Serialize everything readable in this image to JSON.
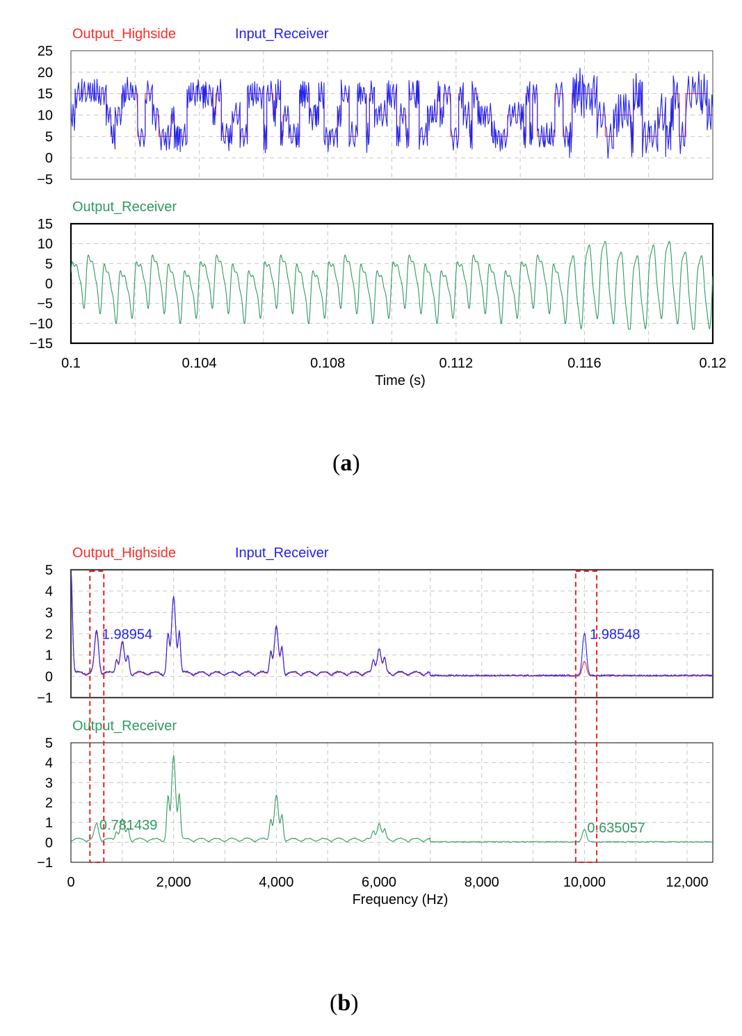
{
  "panels": [
    {
      "label_open": "(",
      "label_letter": "a",
      "label_close": ")"
    },
    {
      "label_open": "(",
      "label_letter": "b",
      "label_close": ")"
    }
  ],
  "colors": {
    "output_highside": "#ff2a2a",
    "input_receiver": "#2222ee",
    "output_receiver": "#2e9a5e",
    "grid": "#c8c8c8",
    "highlight_box": "#e52222"
  },
  "chart_data": [
    {
      "type": "line",
      "id": "a-top",
      "series": [
        {
          "name": "Output_Highside",
          "kind": "square",
          "description_values": "multilevel step waveform, levels approx 5-15"
        },
        {
          "name": "Input_Receiver",
          "kind": "ripple",
          "description_values": "step waveform with ripple, range approx 0-20"
        }
      ],
      "legend": [
        "Output_Highside",
        "Input_Receiver"
      ],
      "ylim": [
        -5,
        25
      ],
      "yticks": [
        25,
        20,
        15,
        10,
        5,
        0,
        -5
      ],
      "ytick_labels": [
        "25",
        "20",
        "15",
        "10",
        "5",
        "0",
        "−5"
      ],
      "xlim": [
        0.1,
        0.12
      ],
      "grid": true
    },
    {
      "type": "line",
      "id": "a-bottom",
      "series": [
        {
          "name": "Output_Receiver"
        }
      ],
      "legend": [
        "Output_Receiver"
      ],
      "ylim": [
        -15,
        15
      ],
      "yticks": [
        15,
        10,
        5,
        0,
        -5,
        -10,
        -15
      ],
      "ytick_labels": [
        "15",
        "10",
        "5",
        "0",
        "−5",
        "−10",
        "−15"
      ],
      "xlim": [
        0.1,
        0.12
      ],
      "xticks": [
        0.1,
        0.104,
        0.108,
        0.112,
        0.116,
        0.12
      ],
      "xtick_labels": [
        "0.1",
        "0.104",
        "0.108",
        "0.112",
        "0.116",
        "0.12"
      ],
      "xlabel": "Time (s)",
      "grid": true
    },
    {
      "type": "line",
      "id": "b-top",
      "series": [
        {
          "name": "Output_Highside",
          "peaks": [
            [
              0,
              5
            ],
            [
              500,
              1.9
            ],
            [
              1000,
              1.4
            ],
            [
              2000,
              3.6
            ],
            [
              4000,
              2.1
            ],
            [
              6000,
              1.2
            ],
            [
              10000,
              0.7
            ]
          ]
        },
        {
          "name": "Input_Receiver",
          "peaks": [
            [
              0,
              5
            ],
            [
              500,
              1.98954
            ],
            [
              1000,
              1.45
            ],
            [
              2000,
              3.6
            ],
            [
              4000,
              2.15
            ],
            [
              6000,
              1.2
            ],
            [
              10000,
              1.98548
            ]
          ]
        }
      ],
      "legend": [
        "Output_Highside",
        "Input_Receiver"
      ],
      "ylim": [
        -1,
        5
      ],
      "yticks": [
        5,
        4,
        3,
        2,
        1,
        0,
        -1
      ],
      "ytick_labels": [
        "5",
        "4",
        "3",
        "2",
        "1",
        "0",
        "−1"
      ],
      "xlim": [
        0,
        12500
      ],
      "annotations": [
        {
          "x": 500,
          "y": 1.98954,
          "text": "1.98954"
        },
        {
          "x": 10000,
          "y": 1.98548,
          "text": "1.98548"
        }
      ],
      "grid": true
    },
    {
      "type": "line",
      "id": "b-bottom",
      "series": [
        {
          "name": "Output_Receiver",
          "peaks": [
            [
              500,
              0.781439
            ],
            [
              1000,
              1.0
            ],
            [
              2000,
              4.2
            ],
            [
              4000,
              2.2
            ],
            [
              6000,
              0.85
            ],
            [
              10000,
              0.635057
            ]
          ]
        }
      ],
      "legend": [
        "Output_Receiver"
      ],
      "ylim": [
        -1,
        5
      ],
      "yticks": [
        5,
        4,
        3,
        2,
        1,
        0,
        -1
      ],
      "ytick_labels": [
        "5",
        "4",
        "3",
        "2",
        "1",
        "0",
        "−1"
      ],
      "xlim": [
        0,
        12500
      ],
      "xticks": [
        0,
        2000,
        4000,
        6000,
        8000,
        10000,
        12000
      ],
      "xtick_labels": [
        "0",
        "2,000",
        "4,000",
        "6,000",
        "8,000",
        "10,000",
        "12,000"
      ],
      "xlabel": "Frequency (Hz)",
      "annotations": [
        {
          "x": 500,
          "y": 0.781439,
          "text": "0.781439"
        },
        {
          "x": 10000,
          "y": 0.635057,
          "text": "0.635057"
        }
      ],
      "highlight_ranges_hz": [
        [
          370,
          640
        ],
        [
          9830,
          10240
        ]
      ],
      "grid": true
    }
  ]
}
